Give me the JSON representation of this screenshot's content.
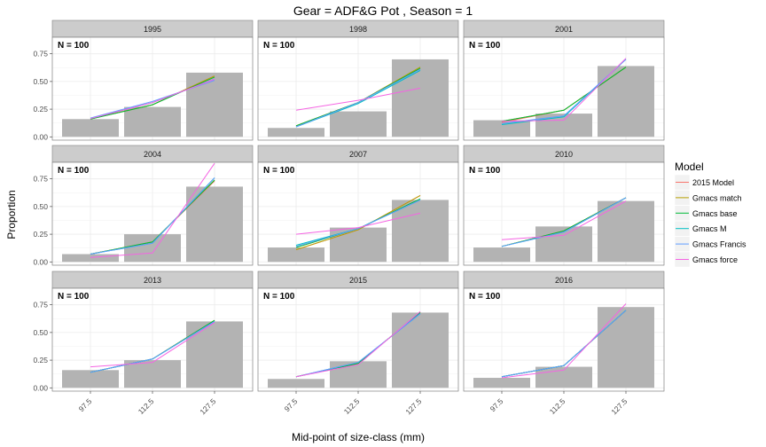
{
  "title": "Gear = ADF&G Pot , Season = 1",
  "xlabel": "Mid-point of size-class (mm)",
  "ylabel": "Proportion",
  "legend": {
    "title": "Model",
    "placement": "right",
    "entries": [
      {
        "name": "2015 Model",
        "color": "#f8766d"
      },
      {
        "name": "Gmacs match",
        "color": "#b79f00"
      },
      {
        "name": "Gmacs base",
        "color": "#00ba38"
      },
      {
        "name": "Gmacs M",
        "color": "#00bfc4"
      },
      {
        "name": "Gmacs Francis",
        "color": "#619cff"
      },
      {
        "name": "Gmacs force",
        "color": "#f564e3"
      }
    ]
  },
  "chart_data": {
    "type": "bar",
    "facet_layout": "3x3",
    "categories": [
      "97.5",
      "112.5",
      "127.5"
    ],
    "ylim": [
      -0.03,
      0.9
    ],
    "yticks": [
      "0.00",
      "0.25",
      "0.50",
      "0.75"
    ],
    "grid": true,
    "panels": [
      {
        "year": "1995",
        "n_label": "N = 100",
        "observed": [
          0.16,
          0.27,
          0.58
        ],
        "series": [
          [
            0.165,
            0.29,
            0.55
          ],
          [
            0.16,
            0.29,
            0.55
          ],
          [
            0.16,
            0.29,
            0.54
          ],
          [
            0.165,
            0.31,
            0.52
          ],
          [
            0.17,
            0.32,
            0.51
          ],
          [
            0.165,
            0.31,
            0.52
          ]
        ]
      },
      {
        "year": "1998",
        "n_label": "N = 100",
        "observed": [
          0.08,
          0.23,
          0.7
        ],
        "series": [
          [
            0.1,
            0.31,
            0.62
          ],
          [
            0.1,
            0.31,
            0.63
          ],
          [
            0.1,
            0.31,
            0.62
          ],
          [
            0.09,
            0.3,
            0.6
          ],
          [
            0.09,
            0.31,
            0.61
          ],
          [
            0.24,
            0.33,
            0.44
          ]
        ]
      },
      {
        "year": "2001",
        "n_label": "N = 100",
        "observed": [
          0.15,
          0.21,
          0.64
        ],
        "series": [
          [
            0.13,
            0.24,
            0.63
          ],
          [
            0.14,
            0.24,
            0.63
          ],
          [
            0.14,
            0.24,
            0.63
          ],
          [
            0.11,
            0.18,
            0.7
          ],
          [
            0.12,
            0.19,
            0.7
          ],
          [
            0.14,
            0.15,
            0.71
          ]
        ]
      },
      {
        "year": "2004",
        "n_label": "N = 100",
        "observed": [
          0.07,
          0.25,
          0.68
        ],
        "series": [
          [
            0.07,
            0.18,
            0.73
          ],
          [
            0.07,
            0.18,
            0.74
          ],
          [
            0.07,
            0.18,
            0.74
          ],
          [
            0.07,
            0.17,
            0.76
          ],
          [
            0.07,
            0.17,
            0.76
          ],
          [
            0.04,
            0.08,
            0.89
          ]
        ]
      },
      {
        "year": "2007",
        "n_label": "N = 100",
        "observed": [
          0.13,
          0.31,
          0.56
        ],
        "series": [
          [
            0.11,
            0.29,
            0.6
          ],
          [
            0.11,
            0.29,
            0.6
          ],
          [
            0.13,
            0.3,
            0.57
          ],
          [
            0.15,
            0.3,
            0.56
          ],
          [
            0.14,
            0.3,
            0.56
          ],
          [
            0.25,
            0.31,
            0.44
          ]
        ]
      },
      {
        "year": "2010",
        "n_label": "N = 100",
        "observed": [
          0.13,
          0.32,
          0.55
        ],
        "series": [
          [
            0.14,
            0.28,
            0.58
          ],
          [
            0.14,
            0.28,
            0.58
          ],
          [
            0.14,
            0.28,
            0.58
          ],
          [
            0.14,
            0.27,
            0.58
          ],
          [
            0.14,
            0.27,
            0.58
          ],
          [
            0.2,
            0.24,
            0.55
          ]
        ]
      },
      {
        "year": "2013",
        "n_label": "N = 100",
        "observed": [
          0.16,
          0.25,
          0.6
        ],
        "series": [
          [
            0.14,
            0.26,
            0.61
          ],
          [
            0.14,
            0.26,
            0.61
          ],
          [
            0.14,
            0.26,
            0.61
          ],
          [
            0.14,
            0.26,
            0.6
          ],
          [
            0.14,
            0.26,
            0.6
          ],
          [
            0.19,
            0.23,
            0.59
          ]
        ]
      },
      {
        "year": "2015",
        "n_label": "N = 100",
        "observed": [
          0.08,
          0.24,
          0.68
        ],
        "series": [
          [
            0.1,
            0.22,
            0.68
          ],
          [
            0.1,
            0.22,
            0.68
          ],
          [
            0.1,
            0.22,
            0.68
          ],
          [
            0.1,
            0.23,
            0.67
          ],
          [
            0.1,
            0.23,
            0.67
          ],
          [
            0.1,
            0.21,
            0.69
          ]
        ]
      },
      {
        "year": "2016",
        "n_label": "N = 100",
        "observed": [
          0.09,
          0.19,
          0.73
        ],
        "series": [
          [
            0.1,
            0.2,
            0.7
          ],
          [
            0.1,
            0.2,
            0.7
          ],
          [
            0.1,
            0.2,
            0.7
          ],
          [
            0.1,
            0.2,
            0.7
          ],
          [
            0.1,
            0.2,
            0.7
          ],
          [
            0.09,
            0.16,
            0.76
          ]
        ]
      }
    ]
  }
}
